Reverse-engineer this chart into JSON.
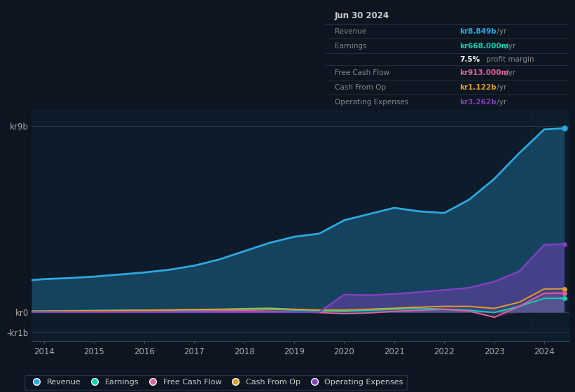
{
  "background_color": "#0d1520",
  "plot_bg_color": "#0d1b2a",
  "years": [
    2013.75,
    2014.0,
    2014.5,
    2015.0,
    2015.5,
    2016.0,
    2016.5,
    2017.0,
    2017.5,
    2018.0,
    2018.5,
    2019.0,
    2019.5,
    2020.0,
    2020.5,
    2021.0,
    2021.5,
    2022.0,
    2022.5,
    2023.0,
    2023.5,
    2024.0,
    2024.4
  ],
  "revenue": [
    1.55,
    1.6,
    1.65,
    1.72,
    1.82,
    1.92,
    2.05,
    2.25,
    2.55,
    2.95,
    3.35,
    3.65,
    3.8,
    4.45,
    4.75,
    5.05,
    4.88,
    4.8,
    5.45,
    6.45,
    7.7,
    8.849,
    8.9
  ],
  "earnings": [
    0.05,
    0.06,
    0.07,
    0.08,
    0.09,
    0.1,
    0.1,
    0.1,
    0.12,
    0.13,
    0.14,
    0.1,
    0.05,
    0.04,
    0.09,
    0.14,
    0.19,
    0.14,
    0.09,
    -0.02,
    0.28,
    0.668,
    0.67
  ],
  "free_cash_flow": [
    0.02,
    0.03,
    0.04,
    0.05,
    0.05,
    0.05,
    0.04,
    0.05,
    0.06,
    0.07,
    0.05,
    0.02,
    -0.02,
    -0.08,
    -0.04,
    0.04,
    0.09,
    0.14,
    0.05,
    -0.25,
    0.28,
    0.913,
    0.92
  ],
  "cash_from_op": [
    0.04,
    0.05,
    0.06,
    0.07,
    0.08,
    0.09,
    0.11,
    0.13,
    0.14,
    0.17,
    0.19,
    0.14,
    0.1,
    0.1,
    0.14,
    0.19,
    0.24,
    0.28,
    0.28,
    0.18,
    0.48,
    1.122,
    1.13
  ],
  "op_expenses": [
    0.0,
    0.0,
    0.0,
    0.0,
    0.0,
    0.0,
    0.0,
    0.0,
    0.0,
    0.0,
    0.0,
    0.0,
    0.0,
    0.85,
    0.82,
    0.88,
    0.97,
    1.07,
    1.18,
    1.48,
    1.97,
    3.262,
    3.3
  ],
  "colors": {
    "revenue": "#2ca8e0",
    "earnings": "#00d4b0",
    "free_cash_flow": "#e060a0",
    "cash_from_op": "#e0a020",
    "op_expenses": "#8040c0"
  },
  "ytick_labels": [
    "-kr1b",
    "kr0",
    "kr9b"
  ],
  "ytick_values": [
    -1,
    0,
    9
  ],
  "xtick_years": [
    2014,
    2015,
    2016,
    2017,
    2018,
    2019,
    2020,
    2021,
    2022,
    2023,
    2024
  ],
  "ylim": [
    -1.4,
    9.8
  ],
  "xlim_start": 2013.75,
  "xlim_end": 2024.5,
  "info_box": {
    "date": "Jun 30 2024",
    "rows": [
      {
        "label": "Revenue",
        "value": "kr8.849b /yr",
        "value_color": "#2ca8e0"
      },
      {
        "label": "Earnings",
        "value": "kr668.000m /yr",
        "value_color": "#00d4b0"
      },
      {
        "label": "",
        "pct": "7.5%",
        "rest": " profit margin"
      },
      {
        "label": "Free Cash Flow",
        "value": "kr913.000m /yr",
        "value_color": "#e060a0"
      },
      {
        "label": "Cash From Op",
        "value": "kr1.122b /yr",
        "value_color": "#e0a020"
      },
      {
        "label": "Operating Expenses",
        "value": "kr3.262b /yr",
        "value_color": "#8040c0"
      }
    ]
  },
  "legend": [
    {
      "label": "Revenue",
      "color": "#2ca8e0"
    },
    {
      "label": "Earnings",
      "color": "#00d4b0"
    },
    {
      "label": "Free Cash Flow",
      "color": "#e060a0"
    },
    {
      "label": "Cash From Op",
      "color": "#e0a020"
    },
    {
      "label": "Operating Expenses",
      "color": "#8040c0"
    }
  ]
}
